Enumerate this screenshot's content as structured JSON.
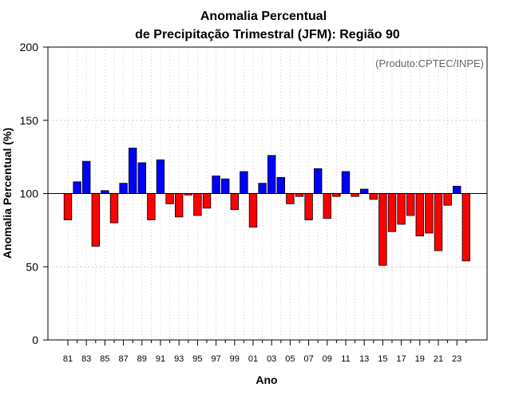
{
  "chart_data": {
    "type": "bar",
    "title_line1": "Anomalia Percentual",
    "title_line2": "de Precipitação Trimestral (JFM): Região 90",
    "xlabel": "Ano",
    "ylabel": "Anomalia Percentual (%)",
    "annotation": "(Produto:CPTEC/INPE)",
    "ylim": [
      0,
      200
    ],
    "yticks": [
      0,
      50,
      100,
      150,
      200
    ],
    "baseline": 100,
    "grid": true,
    "colors": {
      "above": "#0000ff",
      "below": "#ff0000",
      "edge": "#000000",
      "grid": "#cccccc"
    },
    "categories": [
      "81",
      "82",
      "83",
      "84",
      "85",
      "86",
      "87",
      "88",
      "89",
      "90",
      "91",
      "92",
      "93",
      "94",
      "95",
      "96",
      "97",
      "98",
      "99",
      "00",
      "01",
      "02",
      "03",
      "04",
      "05",
      "06",
      "07",
      "08",
      "09",
      "10",
      "11",
      "12",
      "13",
      "14",
      "15",
      "16",
      "17",
      "18",
      "19",
      "20",
      "21",
      "22",
      "23",
      "24"
    ],
    "tick_labels": [
      "81",
      "83",
      "85",
      "87",
      "89",
      "91",
      "93",
      "95",
      "97",
      "99",
      "01",
      "03",
      "05",
      "07",
      "09",
      "11",
      "13",
      "15",
      "17",
      "19",
      "21",
      "23"
    ],
    "values": [
      82,
      108,
      122,
      64,
      102,
      80,
      107,
      131,
      121,
      82,
      123,
      93,
      84,
      99,
      85,
      90,
      112,
      110,
      89,
      115,
      77,
      107,
      126,
      111,
      93,
      98,
      82,
      117,
      83,
      98,
      115,
      98,
      103,
      96,
      51,
      74,
      79,
      85,
      71,
      73,
      61,
      92,
      105,
      54
    ]
  }
}
